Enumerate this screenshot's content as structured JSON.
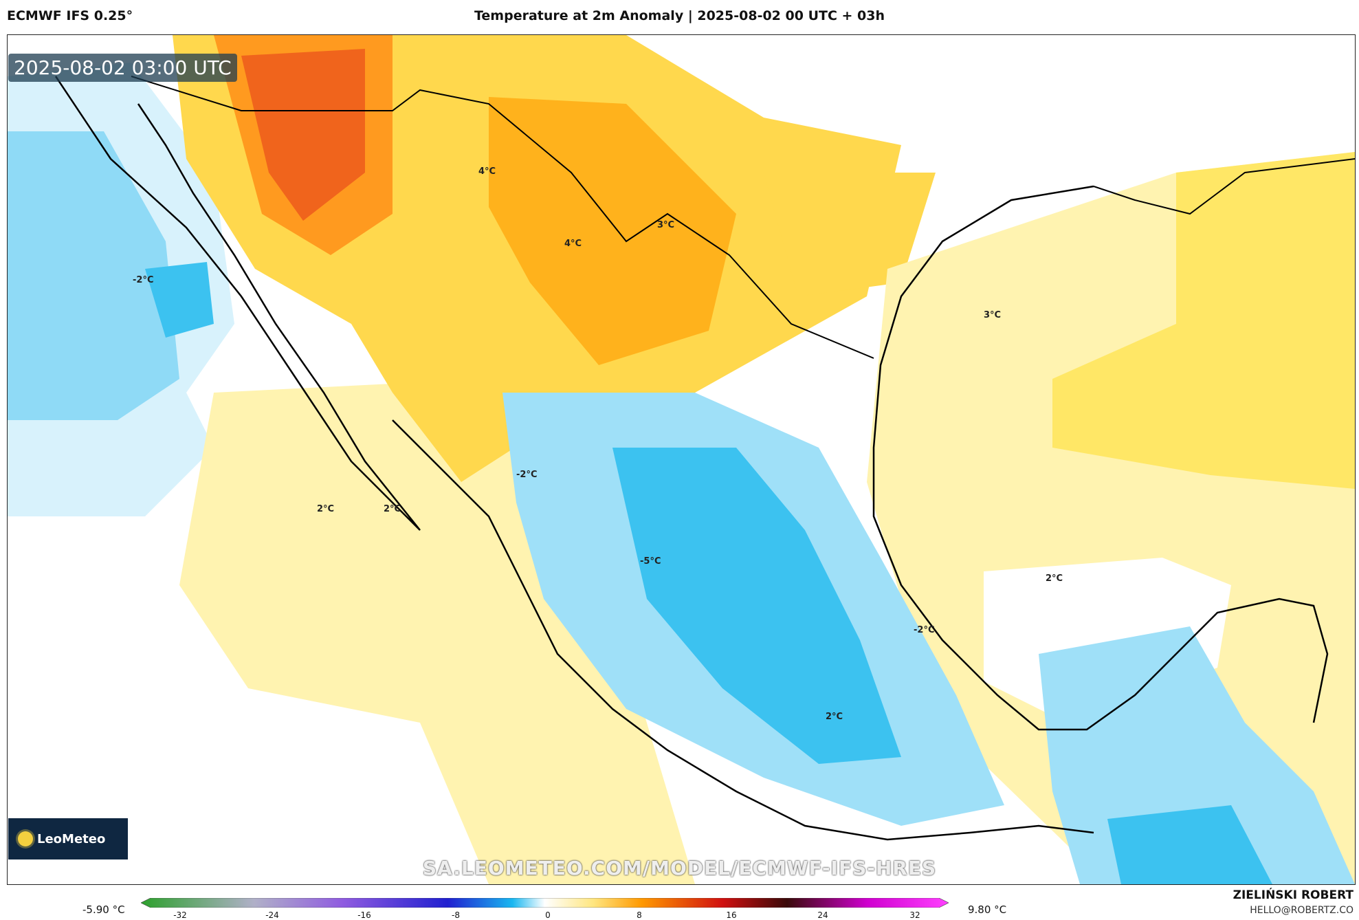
{
  "header": {
    "model": "ECMWF IFS 0.25°",
    "title": "Temperature at 2m Anomaly | 2025-08-02 00 UTC + 03h"
  },
  "map": {
    "valid_time": "2025-08-02 03:00 UTC",
    "contour_labels": [
      "4°C",
      "4°C",
      "3°C",
      "-2°C",
      "3°C",
      "-2°C",
      "2°C",
      "2°C",
      "-5°C",
      "2°C",
      "-2°C",
      "2°C"
    ]
  },
  "logo": {
    "text": "LeoMeteo"
  },
  "watermark": "SA.LEOMETEO.COM/MODEL/ECMWF-IFS-HRES",
  "legend": {
    "min_label": "-5.90 °C",
    "max_label": "9.80 °C",
    "ticks": [
      "-32",
      "-24",
      "-16",
      "-8",
      "0",
      "8",
      "16",
      "24",
      "32"
    ],
    "colors": [
      "#2ca02c",
      "#b0b0c8",
      "#8f5be0",
      "#2020d0",
      "#19b7f0",
      "#ffffff",
      "#ffe680",
      "#ff9900",
      "#d01010",
      "#3a0a0a",
      "#d000d0",
      "#ff40ff"
    ]
  },
  "footer": {
    "author": "ZIELIŃSKI ROBERT",
    "email": "HELLO@ROBERTZ.CO"
  }
}
